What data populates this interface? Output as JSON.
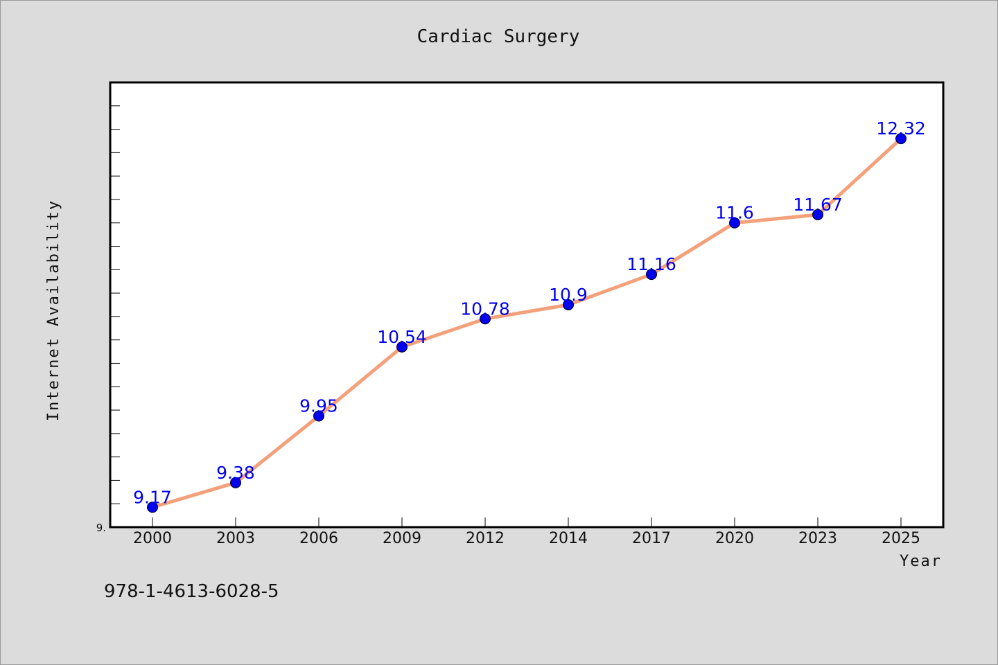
{
  "colors": {
    "background": "#dcdcdc",
    "plot_background": "#ffffff",
    "line": "#f4a07a",
    "marker": "#0000ee",
    "data_label": "#0000ee"
  },
  "footer": {
    "code": "978-1-4613-6028-5"
  },
  "chart_data": {
    "type": "line",
    "title": "Cardiac Surgery",
    "xlabel": "Year",
    "ylabel": "Internet Availability",
    "categories": [
      "2000",
      "2003",
      "2006",
      "2009",
      "2012",
      "2014",
      "2017",
      "2020",
      "2023",
      "2025"
    ],
    "series": [
      {
        "values": [
          9.17,
          9.38,
          9.95,
          10.54,
          10.78,
          10.9,
          11.16,
          11.6,
          11.67,
          12.32
        ]
      }
    ],
    "ylim": [
      9.0,
      12.8
    ],
    "y_tick_labels": [
      {
        "value": 9.0,
        "label": "9."
      }
    ],
    "y_minor_step": 0.2,
    "data_labels": [
      "9.17",
      "9.38",
      "9.95",
      "10.54",
      "10.78",
      "10.9",
      "11.16",
      "11.6",
      "11.67",
      "12.32"
    ],
    "grid": false,
    "legend": "none"
  }
}
